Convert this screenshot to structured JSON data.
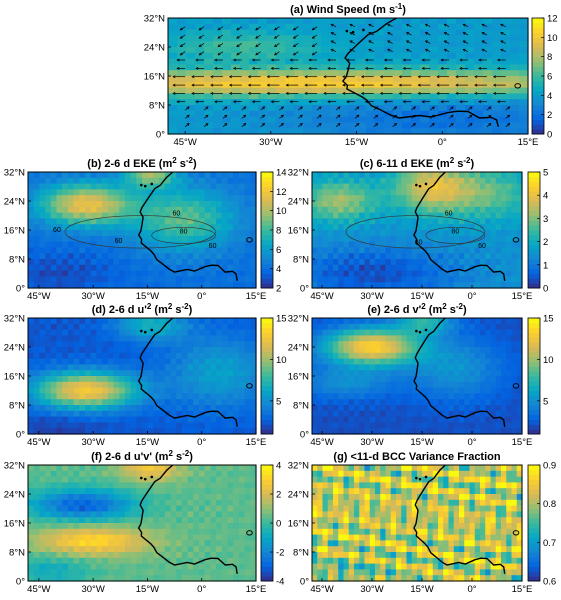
{
  "chart_data": [
    {
      "id": "a",
      "type": "heatmap",
      "title": "(a)  Wind Speed (m s^-1)",
      "xticks": [
        "45°W",
        "30°W",
        "15°W",
        "0°",
        "15°E"
      ],
      "yticks": [
        "0°",
        "8°N",
        "16°N",
        "24°N",
        "32°N"
      ],
      "xlim": [
        -48,
        15
      ],
      "ylim": [
        0,
        32
      ],
      "colorbar": {
        "min": 0,
        "max": 12,
        "ticks": [
          "0",
          "2",
          "4",
          "6",
          "8",
          "10",
          "12"
        ]
      },
      "overlay": "wind-vectors"
    },
    {
      "id": "b",
      "type": "heatmap",
      "title": "(b)  2-6 d EKE (m^2 s^-2)",
      "xticks": [
        "45°W",
        "30°W",
        "15°W",
        "0°",
        "15°E"
      ],
      "yticks": [
        "0°",
        "8°N",
        "16°N",
        "24°N",
        "32°N"
      ],
      "xlim": [
        -48,
        15
      ],
      "ylim": [
        0,
        32
      ],
      "colorbar": {
        "min": 2,
        "max": 14,
        "ticks": [
          "2",
          "4",
          "6",
          "8",
          "10",
          "12",
          "14"
        ]
      },
      "contour_labels": [
        "60",
        "60",
        "60",
        "80",
        "60"
      ]
    },
    {
      "id": "c",
      "type": "heatmap",
      "title": "(c)  6-11 d EKE (m^2 s^-2)",
      "xticks": [
        "45°W",
        "30°W",
        "15°W",
        "0°",
        "15°E"
      ],
      "yticks": [
        "0°",
        "8°N",
        "16°N",
        "24°N",
        "32°N"
      ],
      "xlim": [
        -48,
        15
      ],
      "ylim": [
        0,
        32
      ],
      "colorbar": {
        "min": 0,
        "max": 5,
        "ticks": [
          "0",
          "1",
          "2",
          "3",
          "4",
          "5"
        ]
      },
      "contour_labels": [
        "60",
        "60",
        "80",
        "60"
      ]
    },
    {
      "id": "d",
      "type": "heatmap",
      "title": "(d)  2-6 d u'^2 (m^2 s^-2)",
      "xticks": [
        "45°W",
        "30°W",
        "15°W",
        "0°",
        "15°E"
      ],
      "yticks": [
        "0°",
        "8°N",
        "16°N",
        "24°N",
        "32°N"
      ],
      "xlim": [
        -48,
        15
      ],
      "ylim": [
        0,
        32
      ],
      "colorbar": {
        "min": 1,
        "max": 15,
        "ticks": [
          "5",
          "10",
          "15"
        ]
      }
    },
    {
      "id": "e",
      "type": "heatmap",
      "title": "(e)  2-6 d v'^2 (m^2 s^-2)",
      "xticks": [
        "45°W",
        "30°W",
        "15°W",
        "0°",
        "15°E"
      ],
      "yticks": [
        "0°",
        "8°N",
        "16°N",
        "24°N",
        "32°N"
      ],
      "xlim": [
        -48,
        15
      ],
      "ylim": [
        0,
        32
      ],
      "colorbar": {
        "min": 1,
        "max": 15,
        "ticks": [
          "5",
          "10",
          "15"
        ]
      }
    },
    {
      "id": "f",
      "type": "heatmap",
      "title": "(f)  2-6 d u'v' (m^2 s^-2)",
      "xticks": [
        "45°W",
        "30°W",
        "15°W",
        "0°",
        "15°E"
      ],
      "yticks": [
        "0°",
        "8°N",
        "16°N",
        "24°N",
        "32°N"
      ],
      "xlim": [
        -48,
        15
      ],
      "ylim": [
        0,
        32
      ],
      "colorbar": {
        "min": -4,
        "max": 4,
        "ticks": [
          "-4",
          "-2",
          "0",
          "2",
          "4"
        ]
      }
    },
    {
      "id": "g",
      "type": "heatmap",
      "title": "(g)  <11-d BCC Variance Fraction",
      "xticks": [
        "45°W",
        "30°W",
        "15°W",
        "0°",
        "15°E"
      ],
      "yticks": [
        "0°",
        "8°N",
        "16°N",
        "24°N",
        "32°N"
      ],
      "xlim": [
        -48,
        15
      ],
      "ylim": [
        0,
        32
      ],
      "colorbar": {
        "min": 0.6,
        "max": 0.9,
        "ticks": [
          "0.6",
          "0.7",
          "0.8",
          "0.9"
        ]
      }
    }
  ],
  "colormap": [
    "#352a87",
    "#0363e1",
    "#1485d4",
    "#06a7c6",
    "#38b99e",
    "#92bf73",
    "#d9ba56",
    "#fcce2e",
    "#f9fb0e"
  ],
  "coastline_color": "#000000"
}
